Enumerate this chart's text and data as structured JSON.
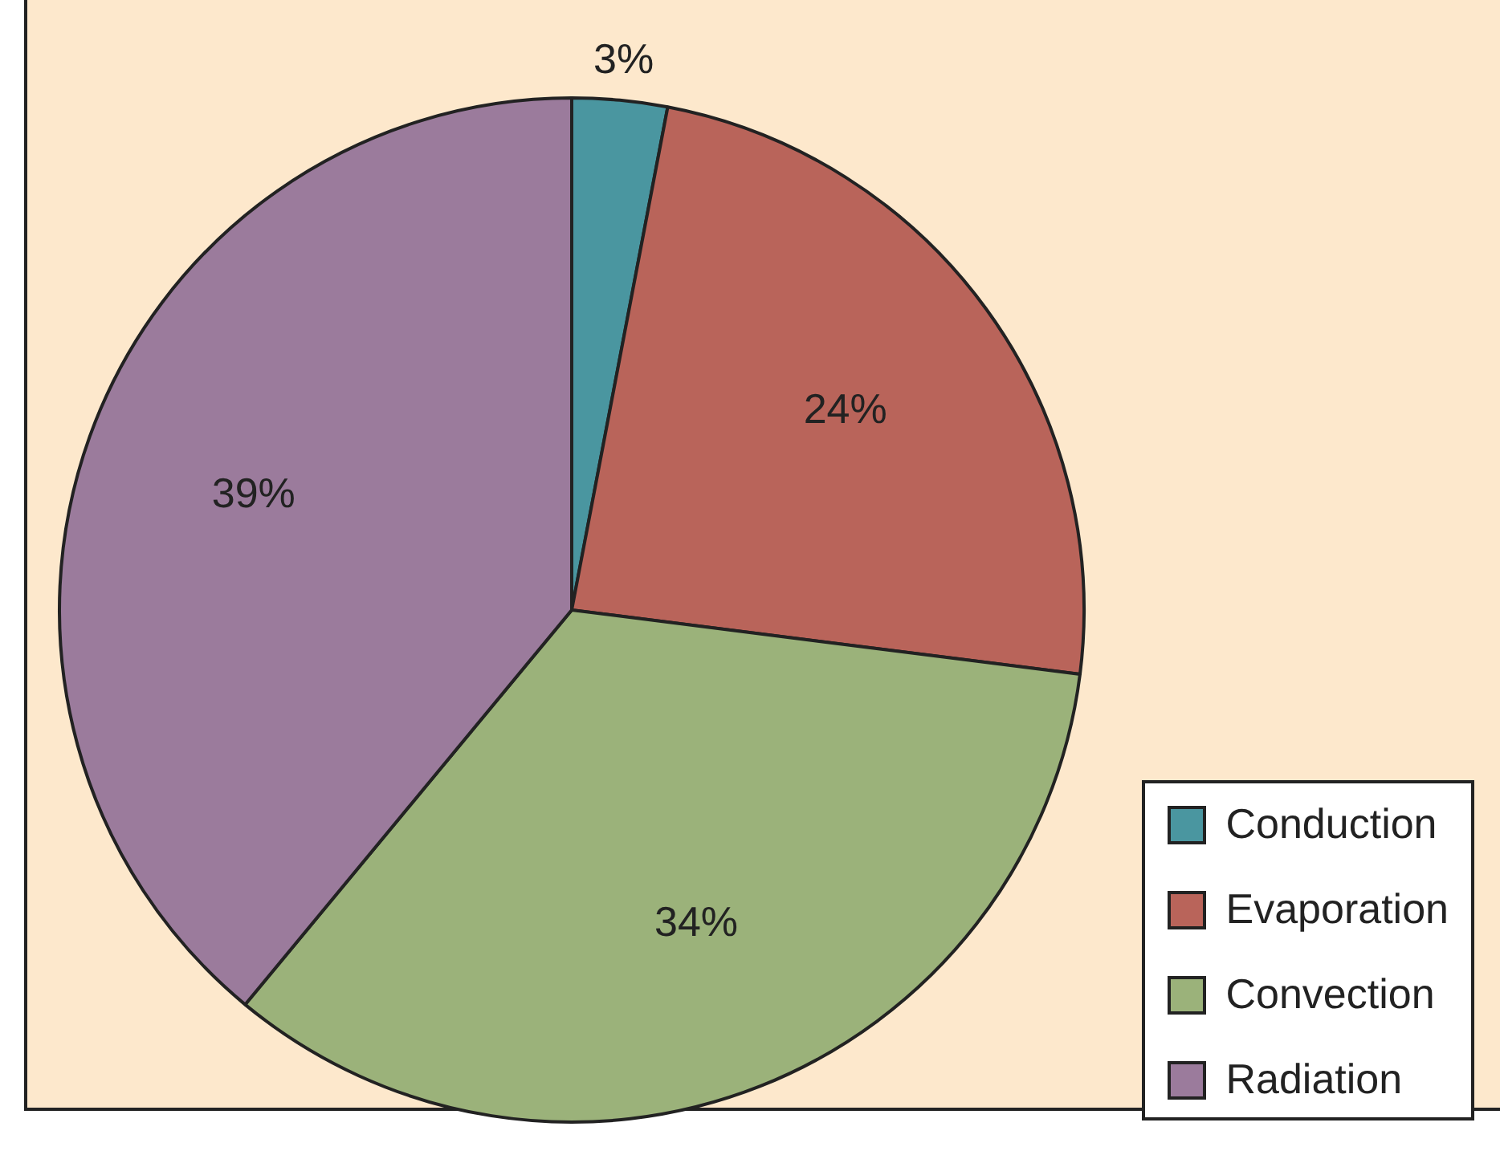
{
  "chart_data": {
    "type": "pie",
    "categories": [
      "Conduction",
      "Evaporation",
      "Convection",
      "Radiation"
    ],
    "values": [
      3,
      24,
      34,
      39
    ],
    "colors": [
      "#4a96a0",
      "#b9645a",
      "#9bb27a",
      "#9b7b9c"
    ],
    "value_labels": [
      "3%",
      "24%",
      "34%",
      "39%"
    ],
    "legend": "bottom right"
  }
}
